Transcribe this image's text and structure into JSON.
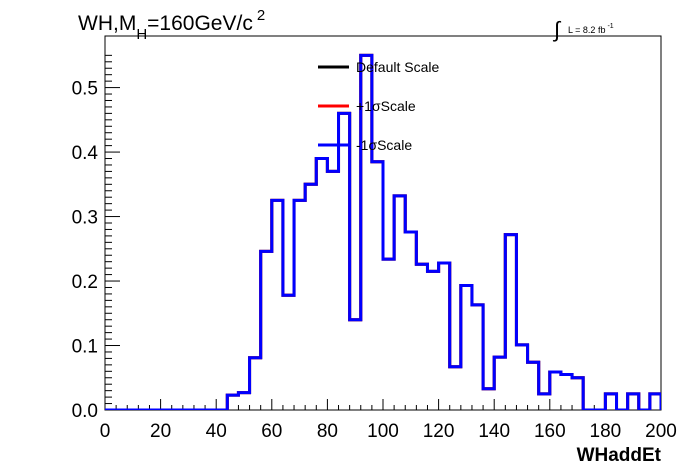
{
  "chart_data": {
    "type": "line",
    "title_main": "WH,M",
    "title_sub": "H",
    "title_rest": "=160GeV/c",
    "title_sup": "2",
    "lumi_text": "L = 8.2 fb",
    "lumi_sup": "-1",
    "lumi_symbol": "∫",
    "xlabel": "WHaddEt",
    "xlim": [
      0,
      200
    ],
    "ylim": [
      0,
      0.58
    ],
    "x_ticks": [
      "0",
      "20",
      "40",
      "60",
      "80",
      "100",
      "120",
      "140",
      "160",
      "180",
      "200"
    ],
    "y_ticks": [
      "0.0",
      "0.1",
      "0.2",
      "0.3",
      "0.4",
      "0.5"
    ],
    "bin_edges": [
      0,
      4,
      8,
      12,
      16,
      20,
      24,
      28,
      32,
      36,
      40,
      44,
      48,
      52,
      56,
      60,
      64,
      68,
      72,
      76,
      80,
      84,
      88,
      92,
      96,
      100,
      104,
      108,
      112,
      116,
      120,
      124,
      128,
      132,
      136,
      140,
      144,
      148,
      152,
      156,
      160,
      164,
      168,
      172,
      176,
      180,
      184,
      188,
      192,
      196,
      200
    ],
    "legend": [
      {
        "label": "Default Scale",
        "color": "#000000"
      },
      {
        "label": "+1σScale",
        "color": "#ff0000"
      },
      {
        "label": "-1σScale",
        "color": "#0000ff"
      }
    ],
    "series": [
      {
        "name": "Default Scale",
        "color": "#000000",
        "values": [
          0,
          0,
          0,
          0,
          0,
          0,
          0,
          0,
          0,
          0,
          0,
          0.023,
          0.027,
          0.081,
          0.246,
          0.325,
          0.178,
          0.325,
          0.35,
          0.39,
          0.37,
          0.46,
          0.14,
          0.55,
          0.385,
          0.234,
          0.332,
          0.276,
          0.226,
          0.215,
          0.228,
          0.067,
          0.193,
          0.163,
          0.033,
          0.082,
          0.272,
          0.101,
          0.074,
          0.025,
          0.059,
          0.055,
          0.05,
          0,
          0,
          0.025,
          0,
          0.025,
          0,
          0.025
        ]
      },
      {
        "name": "+1σScale",
        "color": "#ff0000",
        "values": [
          0,
          0,
          0,
          0,
          0,
          0,
          0,
          0,
          0,
          0,
          0,
          0.023,
          0.027,
          0.081,
          0.246,
          0.325,
          0.178,
          0.325,
          0.35,
          0.39,
          0.37,
          0.46,
          0.14,
          0.55,
          0.385,
          0.234,
          0.332,
          0.276,
          0.226,
          0.215,
          0.228,
          0.067,
          0.193,
          0.163,
          0.033,
          0.082,
          0.272,
          0.101,
          0.074,
          0.025,
          0.059,
          0.055,
          0.05,
          0,
          0,
          0.025,
          0,
          0.025,
          0,
          0.025
        ]
      },
      {
        "name": "-1σScale",
        "color": "#0000ff",
        "values": [
          0,
          0,
          0,
          0,
          0,
          0,
          0,
          0,
          0,
          0,
          0,
          0.023,
          0.027,
          0.081,
          0.246,
          0.325,
          0.178,
          0.325,
          0.35,
          0.39,
          0.37,
          0.46,
          0.14,
          0.55,
          0.385,
          0.234,
          0.332,
          0.276,
          0.226,
          0.215,
          0.228,
          0.067,
          0.193,
          0.163,
          0.033,
          0.082,
          0.272,
          0.101,
          0.074,
          0.025,
          0.059,
          0.055,
          0.05,
          0,
          0,
          0.025,
          0,
          0.025,
          0,
          0.025
        ]
      }
    ]
  }
}
